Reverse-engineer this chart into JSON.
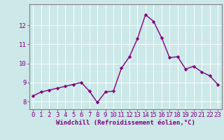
{
  "x": [
    0,
    1,
    2,
    3,
    4,
    5,
    6,
    7,
    8,
    9,
    10,
    11,
    12,
    13,
    14,
    15,
    16,
    17,
    18,
    19,
    20,
    21,
    22,
    23
  ],
  "y": [
    8.3,
    8.5,
    8.6,
    8.7,
    8.8,
    8.9,
    9.0,
    8.55,
    7.95,
    8.5,
    8.55,
    9.75,
    10.35,
    11.3,
    12.55,
    12.2,
    11.35,
    10.3,
    10.35,
    9.7,
    9.85,
    9.55,
    9.35,
    8.9
  ],
  "line_color": "#800080",
  "marker": "D",
  "marker_size": 2.2,
  "line_width": 1.0,
  "bg_color": "#cce8e8",
  "grid_color": "#ffffff",
  "xlabel": "Windchill (Refroidissement éolien,°C)",
  "xlabel_color": "#800080",
  "tick_color": "#800080",
  "spine_color": "#808080",
  "ylim": [
    7.6,
    13.1
  ],
  "xlim": [
    -0.5,
    23.5
  ],
  "yticks": [
    8,
    9,
    10,
    11,
    12
  ],
  "xticks": [
    0,
    1,
    2,
    3,
    4,
    5,
    6,
    7,
    8,
    9,
    10,
    11,
    12,
    13,
    14,
    15,
    16,
    17,
    18,
    19,
    20,
    21,
    22,
    23
  ],
  "tick_fontsize": 6.5,
  "xlabel_fontsize": 6.5
}
